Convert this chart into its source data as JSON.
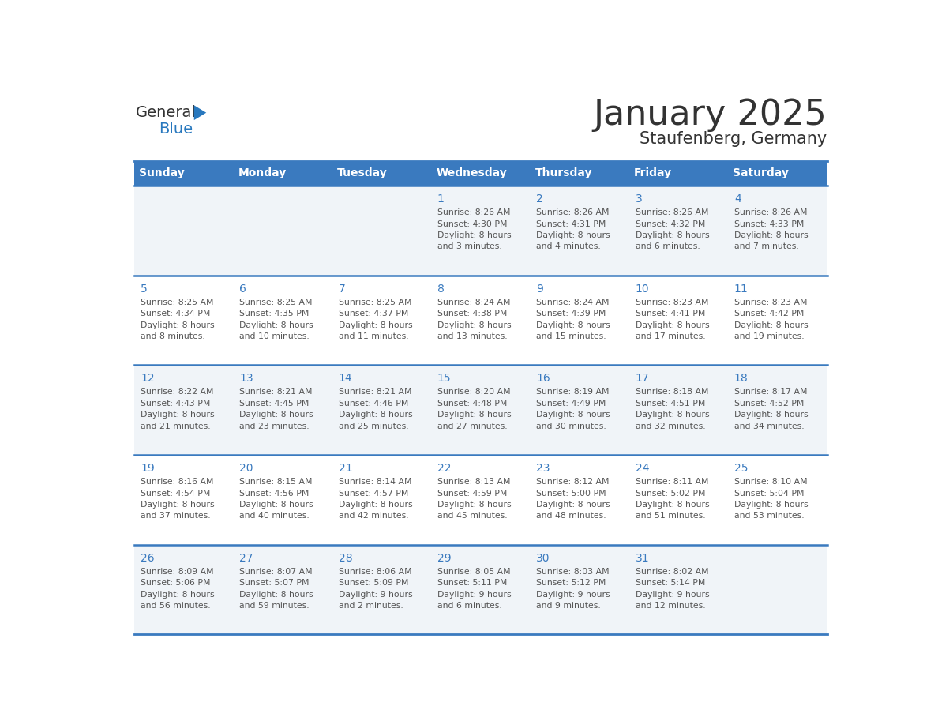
{
  "title": "January 2025",
  "subtitle": "Staufenberg, Germany",
  "days_of_week": [
    "Sunday",
    "Monday",
    "Tuesday",
    "Wednesday",
    "Thursday",
    "Friday",
    "Saturday"
  ],
  "header_bg": "#3a7abf",
  "header_text": "#ffffff",
  "row_bg_even": "#f0f4f8",
  "row_bg_odd": "#ffffff",
  "day_num_color": "#3a7abf",
  "text_color": "#404040",
  "border_color": "#3a7abf",
  "cell_text_color": "#555555",
  "weeks": [
    {
      "days": [
        {
          "day": null,
          "info": null
        },
        {
          "day": null,
          "info": null
        },
        {
          "day": null,
          "info": null
        },
        {
          "day": 1,
          "info": "Sunrise: 8:26 AM\nSunset: 4:30 PM\nDaylight: 8 hours\nand 3 minutes."
        },
        {
          "day": 2,
          "info": "Sunrise: 8:26 AM\nSunset: 4:31 PM\nDaylight: 8 hours\nand 4 minutes."
        },
        {
          "day": 3,
          "info": "Sunrise: 8:26 AM\nSunset: 4:32 PM\nDaylight: 8 hours\nand 6 minutes."
        },
        {
          "day": 4,
          "info": "Sunrise: 8:26 AM\nSunset: 4:33 PM\nDaylight: 8 hours\nand 7 minutes."
        }
      ]
    },
    {
      "days": [
        {
          "day": 5,
          "info": "Sunrise: 8:25 AM\nSunset: 4:34 PM\nDaylight: 8 hours\nand 8 minutes."
        },
        {
          "day": 6,
          "info": "Sunrise: 8:25 AM\nSunset: 4:35 PM\nDaylight: 8 hours\nand 10 minutes."
        },
        {
          "day": 7,
          "info": "Sunrise: 8:25 AM\nSunset: 4:37 PM\nDaylight: 8 hours\nand 11 minutes."
        },
        {
          "day": 8,
          "info": "Sunrise: 8:24 AM\nSunset: 4:38 PM\nDaylight: 8 hours\nand 13 minutes."
        },
        {
          "day": 9,
          "info": "Sunrise: 8:24 AM\nSunset: 4:39 PM\nDaylight: 8 hours\nand 15 minutes."
        },
        {
          "day": 10,
          "info": "Sunrise: 8:23 AM\nSunset: 4:41 PM\nDaylight: 8 hours\nand 17 minutes."
        },
        {
          "day": 11,
          "info": "Sunrise: 8:23 AM\nSunset: 4:42 PM\nDaylight: 8 hours\nand 19 minutes."
        }
      ]
    },
    {
      "days": [
        {
          "day": 12,
          "info": "Sunrise: 8:22 AM\nSunset: 4:43 PM\nDaylight: 8 hours\nand 21 minutes."
        },
        {
          "day": 13,
          "info": "Sunrise: 8:21 AM\nSunset: 4:45 PM\nDaylight: 8 hours\nand 23 minutes."
        },
        {
          "day": 14,
          "info": "Sunrise: 8:21 AM\nSunset: 4:46 PM\nDaylight: 8 hours\nand 25 minutes."
        },
        {
          "day": 15,
          "info": "Sunrise: 8:20 AM\nSunset: 4:48 PM\nDaylight: 8 hours\nand 27 minutes."
        },
        {
          "day": 16,
          "info": "Sunrise: 8:19 AM\nSunset: 4:49 PM\nDaylight: 8 hours\nand 30 minutes."
        },
        {
          "day": 17,
          "info": "Sunrise: 8:18 AM\nSunset: 4:51 PM\nDaylight: 8 hours\nand 32 minutes."
        },
        {
          "day": 18,
          "info": "Sunrise: 8:17 AM\nSunset: 4:52 PM\nDaylight: 8 hours\nand 34 minutes."
        }
      ]
    },
    {
      "days": [
        {
          "day": 19,
          "info": "Sunrise: 8:16 AM\nSunset: 4:54 PM\nDaylight: 8 hours\nand 37 minutes."
        },
        {
          "day": 20,
          "info": "Sunrise: 8:15 AM\nSunset: 4:56 PM\nDaylight: 8 hours\nand 40 minutes."
        },
        {
          "day": 21,
          "info": "Sunrise: 8:14 AM\nSunset: 4:57 PM\nDaylight: 8 hours\nand 42 minutes."
        },
        {
          "day": 22,
          "info": "Sunrise: 8:13 AM\nSunset: 4:59 PM\nDaylight: 8 hours\nand 45 minutes."
        },
        {
          "day": 23,
          "info": "Sunrise: 8:12 AM\nSunset: 5:00 PM\nDaylight: 8 hours\nand 48 minutes."
        },
        {
          "day": 24,
          "info": "Sunrise: 8:11 AM\nSunset: 5:02 PM\nDaylight: 8 hours\nand 51 minutes."
        },
        {
          "day": 25,
          "info": "Sunrise: 8:10 AM\nSunset: 5:04 PM\nDaylight: 8 hours\nand 53 minutes."
        }
      ]
    },
    {
      "days": [
        {
          "day": 26,
          "info": "Sunrise: 8:09 AM\nSunset: 5:06 PM\nDaylight: 8 hours\nand 56 minutes."
        },
        {
          "day": 27,
          "info": "Sunrise: 8:07 AM\nSunset: 5:07 PM\nDaylight: 8 hours\nand 59 minutes."
        },
        {
          "day": 28,
          "info": "Sunrise: 8:06 AM\nSunset: 5:09 PM\nDaylight: 9 hours\nand 2 minutes."
        },
        {
          "day": 29,
          "info": "Sunrise: 8:05 AM\nSunset: 5:11 PM\nDaylight: 9 hours\nand 6 minutes."
        },
        {
          "day": 30,
          "info": "Sunrise: 8:03 AM\nSunset: 5:12 PM\nDaylight: 9 hours\nand 9 minutes."
        },
        {
          "day": 31,
          "info": "Sunrise: 8:02 AM\nSunset: 5:14 PM\nDaylight: 9 hours\nand 12 minutes."
        },
        {
          "day": null,
          "info": null
        }
      ]
    }
  ],
  "logo_general_color": "#333333",
  "logo_blue_color": "#2878be",
  "logo_triangle_color": "#2878be"
}
